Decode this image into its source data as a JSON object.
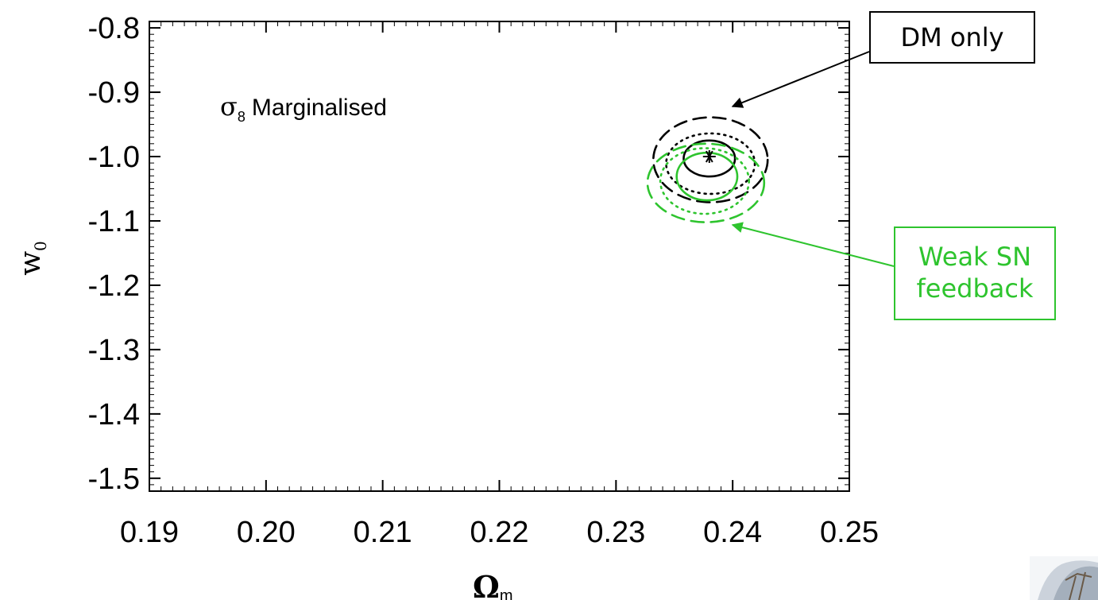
{
  "chart_data": {
    "type": "scatter",
    "xlabel": "Ω",
    "xlabel_sub": "m",
    "ylabel": "w",
    "ylabel_sub": "0",
    "xlim": [
      0.19,
      0.25
    ],
    "ylim": [
      -1.52,
      -0.79
    ],
    "x_ticks": [
      0.19,
      0.2,
      0.21,
      0.22,
      0.23,
      0.24,
      0.25
    ],
    "x_tick_labels": [
      "0.19",
      "0.20",
      "0.21",
      "0.22",
      "0.23",
      "0.24",
      "0.25"
    ],
    "y_ticks": [
      -0.8,
      -0.9,
      -1.0,
      -1.1,
      -1.2,
      -1.3,
      -1.4,
      -1.5
    ],
    "y_tick_labels": [
      "-0.8",
      "-0.9",
      "-1.0",
      "-1.1",
      "-1.2",
      "-1.3",
      "-1.4",
      "-1.5"
    ],
    "grid": false,
    "annotation": {
      "symbol": "σ",
      "subscript": "8",
      "text": "Marginalised"
    },
    "fiducial_point": {
      "x": 0.238,
      "y": -1.0,
      "marker": "asterisk"
    },
    "series": [
      {
        "name": "DM only",
        "color": "#000000",
        "contours": [
          {
            "level": "inner",
            "style": "solid",
            "center": [
              0.238,
              -1.003
            ],
            "radius": [
              0.0022,
              0.028
            ]
          },
          {
            "level": "middle",
            "style": "dotted",
            "center": [
              0.2381,
              -1.011
            ],
            "radius": [
              0.0038,
              0.047
            ]
          },
          {
            "level": "outer",
            "style": "dashed",
            "center": [
              0.2381,
              -1.005
            ],
            "radius": [
              0.0049,
              0.066
            ]
          }
        ]
      },
      {
        "name": "Weak SN feedback",
        "color": "#2ec42e",
        "contours": [
          {
            "level": "inner",
            "style": "solid",
            "center": [
              0.2378,
              -1.031
            ],
            "radius": [
              0.0026,
              0.037
            ]
          },
          {
            "level": "middle",
            "style": "dotted",
            "center": [
              0.2376,
              -1.038
            ],
            "radius": [
              0.0038,
              0.051
            ]
          },
          {
            "level": "outer",
            "style": "dashed",
            "center": [
              0.2377,
              -1.041
            ],
            "radius": [
              0.005,
              0.061
            ]
          }
        ]
      }
    ],
    "callouts": [
      {
        "label": "DM only",
        "color": "#000000",
        "arrow_to": [
          0.2392,
          -0.938
        ]
      },
      {
        "label_line1": "Weak SN",
        "label_line2": "feedback",
        "color": "#2ec42e",
        "arrow_to": [
          0.2393,
          -1.095
        ]
      }
    ]
  }
}
